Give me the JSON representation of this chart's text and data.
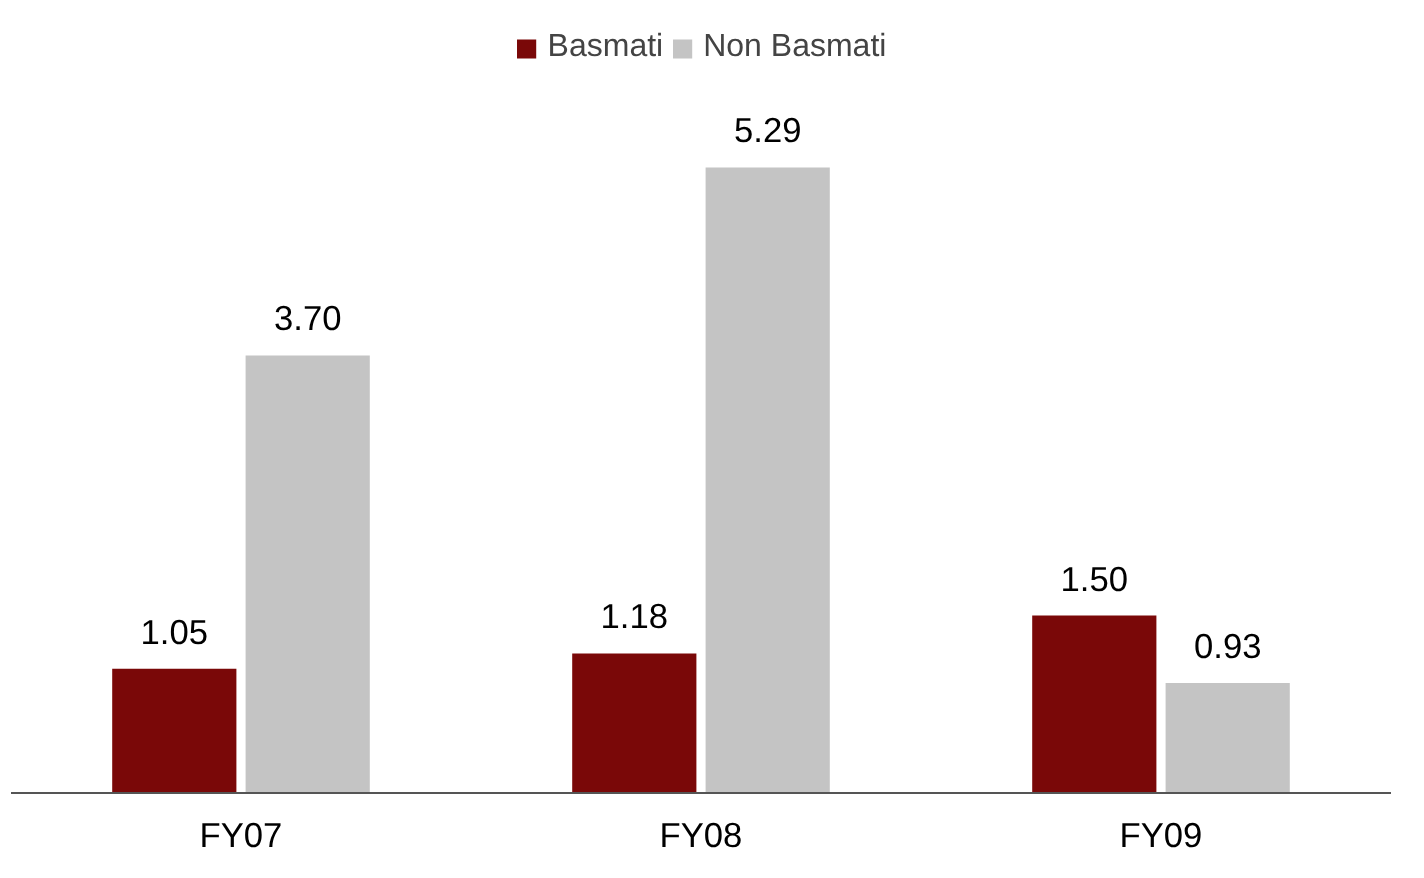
{
  "chart_data": {
    "type": "bar",
    "categories": [
      "FY07",
      "FY08",
      "FY09"
    ],
    "series": [
      {
        "name": "Basmati",
        "color": "#7a0808",
        "values": [
          1.05,
          1.18,
          1.5
        ],
        "value_labels": [
          "1.05",
          "1.18",
          "1.50"
        ]
      },
      {
        "name": "Non Basmati",
        "color": "#c4c4c4",
        "values": [
          3.7,
          5.29,
          0.93
        ],
        "value_labels": [
          "3.70",
          "5.29",
          "0.93"
        ]
      }
    ],
    "legend": "top"
  }
}
